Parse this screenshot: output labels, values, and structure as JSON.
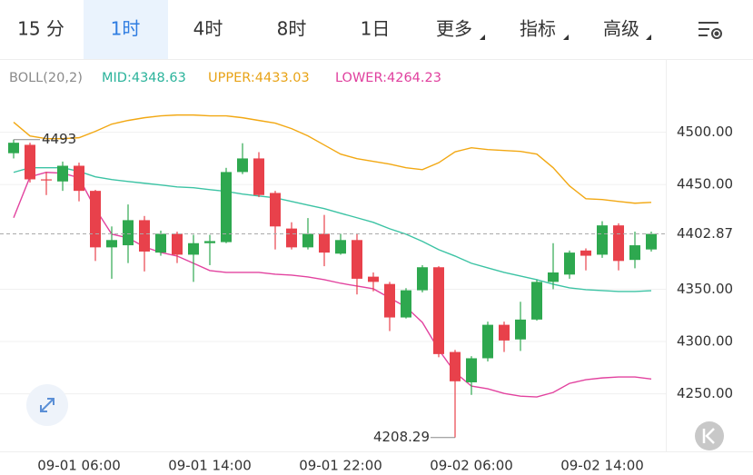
{
  "tabs": [
    "15 分",
    "1时",
    "4时",
    "8时",
    "1日",
    "更多",
    "指标",
    "高级"
  ],
  "active_tab": 1,
  "chart_data": {
    "type": "candlestick",
    "legend": [
      {
        "text": "BOLL(20,2)",
        "color": "#8a8a8a"
      },
      {
        "text": "MID:4348.63",
        "color": "#2bb39b"
      },
      {
        "text": "UPPER:4433.03",
        "color": "#e8a317"
      },
      {
        "text": "LOWER:4264.23",
        "color": "#e0409e"
      }
    ],
    "categories": [
      null,
      null,
      null,
      null,
      "09-01 06:00",
      null,
      null,
      null,
      null,
      null,
      null,
      null,
      "09-01 14:00",
      null,
      null,
      null,
      null,
      null,
      null,
      null,
      "09-01 22:00",
      null,
      null,
      null,
      null,
      null,
      null,
      null,
      "09-02 06:00",
      null,
      null,
      null,
      null,
      null,
      null,
      null,
      "09-02 14:00",
      null,
      null,
      null
    ],
    "open": [
      4480,
      4488,
      4455,
      4453,
      4468,
      4444,
      4390,
      4392,
      4416,
      4385,
      4403,
      4383,
      4394,
      4395,
      4462,
      4475,
      4442,
      4408,
      4390,
      4403,
      4384,
      4397,
      4362,
      4355,
      4323,
      4349,
      4371,
      4290,
      4261,
      4284,
      4316,
      4302,
      4321,
      4357,
      4364,
      4387,
      4383,
      4411,
      4378,
      4388
    ],
    "high": [
      4493,
      4490,
      4462,
      4472,
      4471,
      4445,
      4410,
      4431,
      4420,
      4406,
      4405,
      4402,
      4402,
      4466,
      4489.52,
      4481,
      4444,
      4414,
      4418,
      4421,
      4403,
      4403,
      4366,
      4357,
      4351,
      4373,
      4372,
      4292,
      4286,
      4319,
      4319,
      4338,
      4359,
      4394,
      4387,
      4389,
      4415,
      4413,
      4405,
      4405
    ],
    "low": [
      4475,
      4452,
      4440,
      4444,
      4434,
      4377,
      4360,
      4375,
      4367,
      4382,
      4375,
      4357,
      4373,
      4394,
      4460,
      4438,
      4388,
      4388,
      4388,
      4372,
      4383,
      4345,
      4348,
      4310,
      4322,
      4347,
      4285,
      4208.29,
      4249,
      4281,
      4290,
      4291,
      4320,
      4350,
      4360,
      4368,
      4380,
      4368,
      4370,
      4386
    ],
    "close": [
      4490,
      4455,
      4454,
      4468,
      4444,
      4390,
      4397,
      4416,
      4386,
      4403,
      4383,
      4394,
      4396,
      4462,
      4475,
      4440,
      4410,
      4390,
      4403,
      4385,
      4397,
      4360,
      4357,
      4323,
      4349,
      4371,
      4288,
      4262,
      4284,
      4316,
      4301,
      4321,
      4357,
      4366,
      4385,
      4382,
      4411,
      4377,
      4392,
      4402.87
    ],
    "up_color": "#2ea84f",
    "down_color": "#e8414b",
    "overlays": [
      {
        "name": "UPPER",
        "color": "#f2a813",
        "values": [
          4509.6,
          4496.5,
          4493.9,
          4493.9,
          4494.8,
          4500.9,
          4507.8,
          4511.3,
          4513.9,
          4515.7,
          4516.5,
          4516.5,
          4515.7,
          4515.7,
          4513.9,
          4511.3,
          4508.7,
          4503.5,
          4496.5,
          4487.8,
          4479.1,
          4474.8,
          4472.2,
          4469.6,
          4466.1,
          4464.3,
          4470.9,
          4481.3,
          4485.2,
          4483.5,
          4482.6,
          4481.7,
          4479.1,
          4466.1,
          4448.7,
          4436.5,
          4435.7,
          4433.9,
          4432.2,
          4433.0
        ]
      },
      {
        "name": "MID",
        "color": "#3cc3a4",
        "values": [
          4461.7,
          4466.1,
          4466.1,
          4466.1,
          4462.6,
          4457.4,
          4454.8,
          4453.0,
          4451.3,
          4449.6,
          4447.8,
          4447.0,
          4445.2,
          4443.5,
          4440.9,
          4439.1,
          4437.4,
          4433.9,
          4430.4,
          4427.0,
          4422.6,
          4418.3,
          4413.9,
          4407.8,
          4402.6,
          4395.7,
          4387.8,
          4381.7,
          4374.8,
          4370.4,
          4366.1,
          4362.6,
          4359.1,
          4354.8,
          4351.3,
          4349.6,
          4348.7,
          4347.8,
          4347.8,
          4348.6
        ]
      },
      {
        "name": "LOWER",
        "color": "#e2439f",
        "values": [
          4418.3,
          4457.4,
          4461.7,
          4460.9,
          4456.5,
          4427.0,
          4402.6,
          4399.1,
          4390.4,
          4385.2,
          4381.7,
          4374.8,
          4367.8,
          4366.1,
          4366.1,
          4366.1,
          4364.3,
          4363.5,
          4361.7,
          4359.1,
          4355.7,
          4353.0,
          4350.4,
          4341.7,
          4333.0,
          4318.3,
          4292.2,
          4270.4,
          4257.4,
          4254.8,
          4250.4,
          4247.8,
          4247.0,
          4251.3,
          4260.0,
          4263.5,
          4265.2,
          4266.1,
          4266.1,
          4264.2
        ]
      }
    ],
    "ylim": [
      4195,
      4570
    ],
    "yticks": [
      {
        "value": 4250,
        "label": "4250.00"
      },
      {
        "value": 4300,
        "label": "4300.00"
      },
      {
        "value": 4350,
        "label": "4350.00"
      },
      {
        "value": 4450,
        "label": "4450.00"
      },
      {
        "value": 4500,
        "label": "4500.00"
      }
    ],
    "grid": true
  }
}
